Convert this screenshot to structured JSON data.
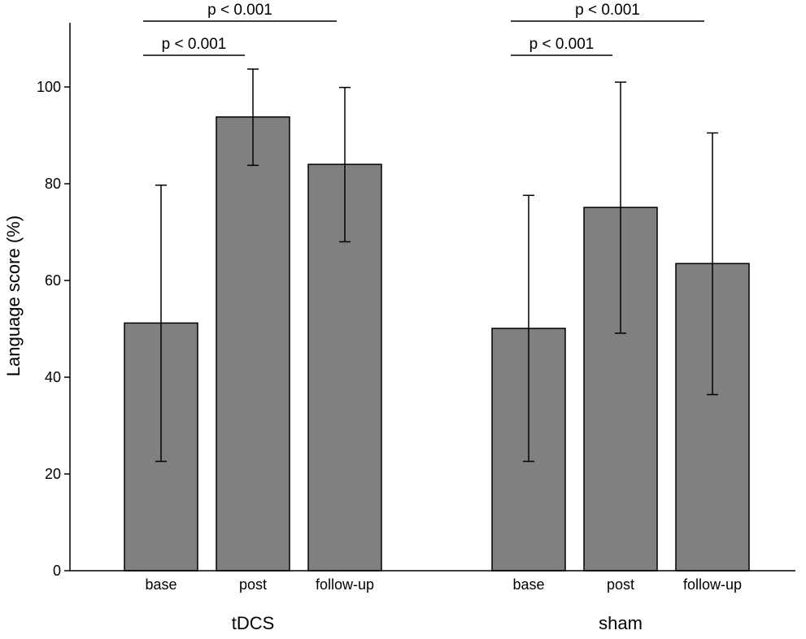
{
  "chart_data": {
    "type": "bar",
    "xlabel": "",
    "ylabel": "Language score (%)",
    "ylim": [
      0,
      112
    ],
    "yticks": [
      0,
      20,
      40,
      60,
      80,
      100
    ],
    "grid": false,
    "legend": "none",
    "bar_color": "#808080",
    "groups": [
      {
        "name": "tDCS",
        "categories": [
          "base",
          "post",
          "follow-up"
        ],
        "values": [
          51.2,
          93.8,
          84.0
        ],
        "error_low": [
          22.6,
          83.8,
          68.0
        ],
        "error_high": [
          79.7,
          103.7,
          99.9
        ]
      },
      {
        "name": "sham",
        "categories": [
          "base",
          "post",
          "follow-up"
        ],
        "values": [
          50.1,
          75.1,
          63.5
        ],
        "error_low": [
          22.6,
          49.1,
          36.4
        ],
        "error_high": [
          77.6,
          101.0,
          90.5
        ]
      }
    ],
    "annotations": [
      {
        "group": 0,
        "from": 0,
        "to": 1,
        "text": "p < 0.001",
        "level": 1
      },
      {
        "group": 0,
        "from": 0,
        "to": 2,
        "text": "p < 0.001",
        "level": 2
      },
      {
        "group": 1,
        "from": 0,
        "to": 1,
        "text": "p < 0.001",
        "level": 1
      },
      {
        "group": 1,
        "from": 0,
        "to": 2,
        "text": "p < 0.001",
        "level": 2
      }
    ]
  }
}
